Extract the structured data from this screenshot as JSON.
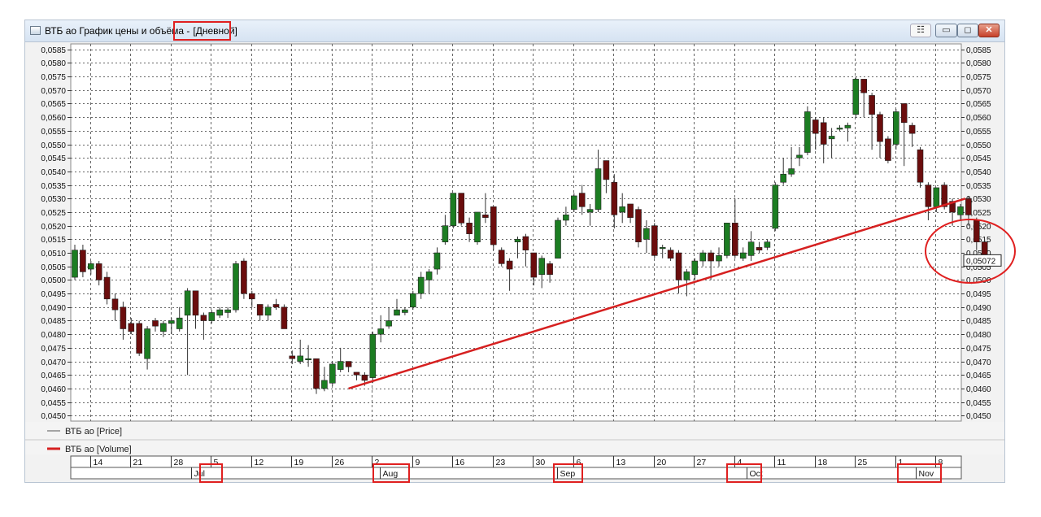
{
  "window": {
    "title": "ВТБ ао График цены и объёма -",
    "mode": "[Дневной]",
    "buttons": {
      "pin": "☷",
      "minimize": "▭",
      "maximize": "◻",
      "close": "✕"
    }
  },
  "chart_data": {
    "type": "candlestick",
    "ylim": [
      0.0448,
      0.0587
    ],
    "y_ticks": [
      "0,0450",
      "0,0455",
      "0,0460",
      "0,0465",
      "0,0470",
      "0,0475",
      "0,0480",
      "0,0485",
      "0,0490",
      "0,0495",
      "0,0500",
      "0,0505",
      "0,0510",
      "0,0515",
      "0,0520",
      "0,0525",
      "0,0530",
      "0,0535",
      "0,0540",
      "0,0545",
      "0,0550",
      "0,0555",
      "0,0560",
      "0,0565",
      "0,0570",
      "0,0575",
      "0,0580",
      "0,0585"
    ],
    "y_tick_values": [
      0.045,
      0.0455,
      0.046,
      0.0465,
      0.047,
      0.0475,
      0.048,
      0.0485,
      0.049,
      0.0495,
      0.05,
      0.0505,
      0.051,
      0.0515,
      0.052,
      0.0525,
      0.053,
      0.0535,
      0.054,
      0.0545,
      0.055,
      0.0555,
      0.056,
      0.0565,
      0.057,
      0.0575,
      0.058,
      0.0585
    ],
    "current_price_label": "0,05072",
    "current_price": 0.05072,
    "grid": true,
    "week_labels": [
      "14",
      "21",
      "28",
      "5",
      "12",
      "19",
      "26",
      "2",
      "9",
      "16",
      "23",
      "30",
      "6",
      "13",
      "20",
      "27",
      "4",
      "11",
      "18",
      "25",
      "1",
      "8"
    ],
    "week_label_index": [
      2,
      7,
      12,
      17,
      22,
      27,
      32,
      37,
      42,
      47,
      52,
      57,
      62,
      67,
      72,
      77,
      82,
      87,
      92,
      97,
      102,
      107
    ],
    "months": [
      "Jul",
      "Aug",
      "Sep",
      "Oct",
      "Nov"
    ],
    "month_label_index": [
      14.5,
      38,
      60,
      83.5,
      104.5
    ],
    "legend": [
      {
        "label": "ВТБ ао [Price]",
        "color": "#555555"
      },
      {
        "label": "ВТБ ао [Volume]",
        "color": "#d62020"
      }
    ],
    "up_color": "#1c7d22",
    "down_color": "#6b0d0d",
    "trendline_color": "#d62020",
    "trendline": {
      "from": [
        34,
        0.046
      ],
      "to": [
        110,
        0.053
      ]
    },
    "candles": [
      [
        0.0501,
        0.0511,
        0.05,
        0.0513
      ],
      [
        0.0511,
        0.0503,
        0.0501,
        0.0513
      ],
      [
        0.0504,
        0.0506,
        0.0502,
        0.0507
      ],
      [
        0.0506,
        0.05,
        0.0498,
        0.0507
      ],
      [
        0.0501,
        0.0493,
        0.0491,
        0.0503
      ],
      [
        0.0493,
        0.0489,
        0.0485,
        0.0495
      ],
      [
        0.049,
        0.0482,
        0.0478,
        0.0492
      ],
      [
        0.0484,
        0.0481,
        0.048,
        0.0486
      ],
      [
        0.0484,
        0.0473,
        0.0472,
        0.0485
      ],
      [
        0.0471,
        0.0482,
        0.0467,
        0.0483
      ],
      [
        0.0485,
        0.0483,
        0.0481,
        0.0486
      ],
      [
        0.0481,
        0.0484,
        0.0479,
        0.0485
      ],
      [
        0.0484,
        0.0485,
        0.048,
        0.0486
      ],
      [
        0.0482,
        0.0486,
        0.0481,
        0.049
      ],
      [
        0.0487,
        0.0496,
        0.0465,
        0.0497
      ],
      [
        0.0496,
        0.0487,
        0.0482,
        0.0496
      ],
      [
        0.0487,
        0.0485,
        0.0478,
        0.0488
      ],
      [
        0.0485,
        0.0488,
        0.0484,
        0.0489
      ],
      [
        0.0487,
        0.0489,
        0.0486,
        0.049
      ],
      [
        0.0488,
        0.0489,
        0.0486,
        0.049
      ],
      [
        0.0489,
        0.0506,
        0.0488,
        0.0507
      ],
      [
        0.0507,
        0.0495,
        0.0493,
        0.0508
      ],
      [
        0.0495,
        0.0493,
        0.049,
        0.0496
      ],
      [
        0.0491,
        0.0487,
        0.0485,
        0.0491
      ],
      [
        0.0487,
        0.049,
        0.0485,
        0.0491
      ],
      [
        0.0491,
        0.049,
        0.0489,
        0.0493
      ],
      [
        0.049,
        0.0482,
        0.0482,
        0.0491
      ],
      [
        0.0472,
        0.0471,
        0.0469,
        0.0474
      ],
      [
        0.047,
        0.0472,
        0.0469,
        0.0478
      ],
      [
        0.0471,
        0.0471,
        0.0468,
        0.0476
      ],
      [
        0.0471,
        0.046,
        0.0458,
        0.0471
      ],
      [
        0.046,
        0.0463,
        0.0459,
        0.0468
      ],
      [
        0.0462,
        0.0469,
        0.0461,
        0.047
      ],
      [
        0.0467,
        0.047,
        0.0466,
        0.0475
      ],
      [
        0.047,
        0.0468,
        0.0466,
        0.047
      ],
      [
        0.0466,
        0.0465,
        0.0463,
        0.0466
      ],
      [
        0.0465,
        0.0463,
        0.0461,
        0.0466
      ],
      [
        0.0464,
        0.048,
        0.0462,
        0.0481
      ],
      [
        0.048,
        0.0482,
        0.0477,
        0.0487
      ],
      [
        0.0483,
        0.0485,
        0.0482,
        0.049
      ],
      [
        0.0487,
        0.0489,
        0.0487,
        0.0493
      ],
      [
        0.0488,
        0.0489,
        0.0487,
        0.049
      ],
      [
        0.049,
        0.0495,
        0.0489,
        0.0496
      ],
      [
        0.0495,
        0.0501,
        0.0493,
        0.0503
      ],
      [
        0.05,
        0.0503,
        0.0495,
        0.0504
      ],
      [
        0.0504,
        0.051,
        0.0502,
        0.0512
      ],
      [
        0.0514,
        0.052,
        0.0513,
        0.0524
      ],
      [
        0.052,
        0.0532,
        0.0519,
        0.0532
      ],
      [
        0.0532,
        0.0521,
        0.052,
        0.0532
      ],
      [
        0.0521,
        0.0517,
        0.0514,
        0.0523
      ],
      [
        0.0514,
        0.0525,
        0.0513,
        0.0525
      ],
      [
        0.0524,
        0.0523,
        0.0521,
        0.0532
      ],
      [
        0.0527,
        0.0513,
        0.0511,
        0.0527
      ],
      [
        0.0511,
        0.0506,
        0.0505,
        0.0512
      ],
      [
        0.0507,
        0.0504,
        0.0496,
        0.0508
      ],
      [
        0.0514,
        0.0515,
        0.0508,
        0.0516
      ],
      [
        0.0516,
        0.0511,
        0.0505,
        0.0517
      ],
      [
        0.051,
        0.0501,
        0.0498,
        0.051
      ],
      [
        0.0502,
        0.0508,
        0.0497,
        0.0509
      ],
      [
        0.0506,
        0.0502,
        0.0499,
        0.0507
      ],
      [
        0.0508,
        0.0522,
        0.0508,
        0.0523
      ],
      [
        0.0522,
        0.0524,
        0.052,
        0.0527
      ],
      [
        0.0526,
        0.0531,
        0.0525,
        0.0532
      ],
      [
        0.0532,
        0.0527,
        0.0524,
        0.0535
      ],
      [
        0.0525,
        0.0526,
        0.052,
        0.0528
      ],
      [
        0.0526,
        0.0541,
        0.0525,
        0.0548
      ],
      [
        0.0544,
        0.0537,
        0.0532,
        0.0544
      ],
      [
        0.0536,
        0.0524,
        0.0519,
        0.0539
      ],
      [
        0.0525,
        0.0527,
        0.0521,
        0.0532
      ],
      [
        0.0528,
        0.0523,
        0.0521,
        0.0528
      ],
      [
        0.0526,
        0.0514,
        0.0512,
        0.0527
      ],
      [
        0.0515,
        0.0519,
        0.051,
        0.0522
      ],
      [
        0.052,
        0.0509,
        0.0508,
        0.0521
      ],
      [
        0.0512,
        0.0512,
        0.0508,
        0.0513
      ],
      [
        0.0511,
        0.0508,
        0.0507,
        0.0512
      ],
      [
        0.051,
        0.05,
        0.0495,
        0.0511
      ],
      [
        0.05,
        0.0503,
        0.0494,
        0.0504
      ],
      [
        0.0502,
        0.0507,
        0.05,
        0.0508
      ],
      [
        0.0507,
        0.051,
        0.0505,
        0.0511
      ],
      [
        0.051,
        0.0507,
        0.05,
        0.0511
      ],
      [
        0.0507,
        0.0509,
        0.0505,
        0.0512
      ],
      [
        0.0509,
        0.0521,
        0.0508,
        0.0521
      ],
      [
        0.0521,
        0.0509,
        0.0508,
        0.053
      ],
      [
        0.0508,
        0.051,
        0.0507,
        0.0512
      ],
      [
        0.0509,
        0.0514,
        0.0507,
        0.0518
      ],
      [
        0.0512,
        0.0511,
        0.051,
        0.0514
      ],
      [
        0.0512,
        0.0514,
        0.0511,
        0.0515
      ],
      [
        0.0519,
        0.0535,
        0.0518,
        0.0536
      ],
      [
        0.0536,
        0.0539,
        0.0535,
        0.0545
      ],
      [
        0.0539,
        0.0541,
        0.0538,
        0.0549
      ],
      [
        0.0545,
        0.0546,
        0.0542,
        0.0549
      ],
      [
        0.0547,
        0.0562,
        0.0546,
        0.0564
      ],
      [
        0.0559,
        0.0554,
        0.0548,
        0.056
      ],
      [
        0.0558,
        0.055,
        0.0543,
        0.056
      ],
      [
        0.0552,
        0.0553,
        0.0545,
        0.0556
      ],
      [
        0.0556,
        0.0556,
        0.0555,
        0.0557
      ],
      [
        0.0556,
        0.0557,
        0.0551,
        0.0558
      ],
      [
        0.0561,
        0.0574,
        0.056,
        0.0575
      ],
      [
        0.0574,
        0.0569,
        0.056,
        0.0574
      ],
      [
        0.0568,
        0.0561,
        0.0548,
        0.0569
      ],
      [
        0.0561,
        0.0551,
        0.0545,
        0.0562
      ],
      [
        0.0552,
        0.0544,
        0.0543,
        0.0553
      ],
      [
        0.055,
        0.0562,
        0.0548,
        0.0563
      ],
      [
        0.0565,
        0.0558,
        0.0542,
        0.0565
      ],
      [
        0.0557,
        0.0554,
        0.0549,
        0.0558
      ],
      [
        0.0548,
        0.0536,
        0.0534,
        0.0549
      ],
      [
        0.0535,
        0.0527,
        0.0522,
        0.0536
      ],
      [
        0.0527,
        0.0534,
        0.0525,
        0.0534
      ],
      [
        0.0535,
        0.0527,
        0.0526,
        0.0536
      ],
      [
        0.0529,
        0.0525,
        0.052,
        0.053
      ],
      [
        0.0524,
        0.0527,
        0.0522,
        0.0528
      ],
      [
        0.053,
        0.0524,
        0.052,
        0.0531
      ],
      [
        0.0522,
        0.0514,
        0.0511,
        0.0523
      ],
      [
        0.0514,
        0.0507,
        0.0505,
        0.0515
      ]
    ]
  }
}
